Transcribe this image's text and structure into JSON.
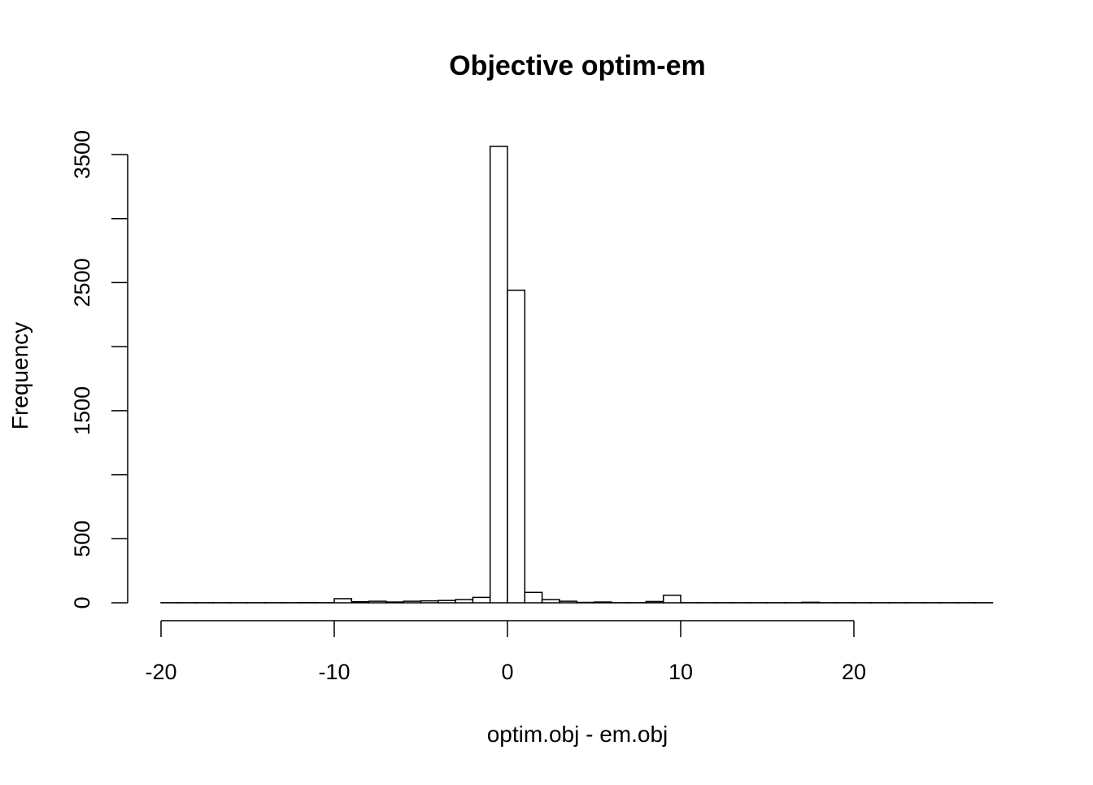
{
  "chart_data": {
    "type": "bar",
    "title": "Objective optim-em",
    "xlabel": "optim.obj - em.obj",
    "ylabel": "Frequency",
    "bin_width": 1,
    "bin_start": -20,
    "values": [
      1,
      1,
      1,
      1,
      1,
      1,
      1,
      1,
      2,
      1,
      32,
      8,
      12,
      6,
      12,
      15,
      18,
      25,
      42,
      3564,
      2440,
      81,
      25,
      12,
      3,
      6,
      1,
      1,
      10,
      59,
      1,
      1,
      1,
      1,
      1,
      1,
      1,
      4,
      1,
      1,
      1,
      1,
      1,
      1,
      1,
      1,
      1,
      1
    ],
    "xlim": [
      -20,
      28
    ],
    "ylim": [
      0,
      3500
    ],
    "x_ticks": [
      -20,
      -10,
      0,
      10,
      20
    ],
    "x_tick_labels": [
      "-20",
      "-10",
      "0",
      "10",
      "20"
    ],
    "y_ticks": [
      0,
      500,
      1000,
      1500,
      2000,
      2500,
      3000,
      3500
    ],
    "y_tick_labels": [
      "0",
      "500",
      "",
      "1500",
      "",
      "2500",
      "",
      "3500"
    ],
    "grid": false,
    "bar_fill": "#ffffff",
    "bar_stroke": "#000000"
  }
}
